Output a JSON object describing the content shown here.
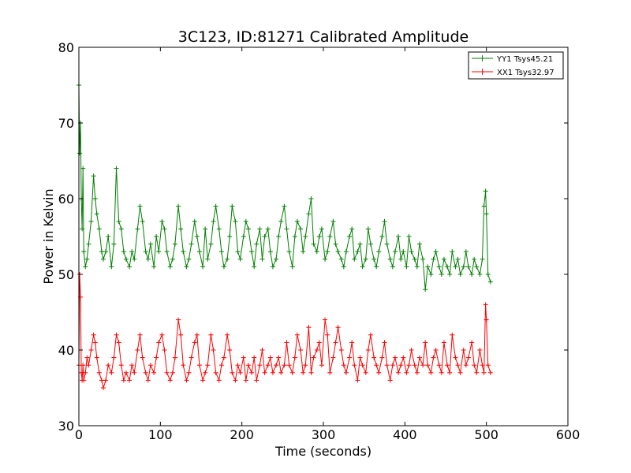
{
  "chart_data": {
    "type": "line",
    "title": "3C123, ID:81271 Calibrated Amplitude",
    "xlabel": "Time (seconds)",
    "ylabel": "Power in Kelvin",
    "xlim": [
      0,
      600
    ],
    "ylim": [
      30,
      80
    ],
    "x_ticks": [
      "0",
      "100",
      "200",
      "300",
      "400",
      "500",
      "600"
    ],
    "y_ticks": [
      "30",
      "40",
      "50",
      "60",
      "70",
      "80"
    ],
    "grid": false,
    "legend_position": "top-right",
    "marker": "+",
    "series": [
      {
        "name": "YY1 Tsys45.21",
        "color": "#007f00",
        "x": [
          0,
          1,
          2,
          3,
          4,
          5,
          6,
          8,
          10,
          12,
          15,
          18,
          20,
          22,
          25,
          28,
          30,
          33,
          36,
          40,
          43,
          46,
          49,
          52,
          55,
          58,
          62,
          65,
          68,
          72,
          75,
          78,
          82,
          85,
          88,
          92,
          95,
          98,
          102,
          105,
          108,
          112,
          115,
          118,
          122,
          125,
          128,
          132,
          135,
          138,
          142,
          145,
          148,
          152,
          155,
          158,
          162,
          165,
          168,
          172,
          175,
          178,
          182,
          185,
          188,
          192,
          195,
          198,
          202,
          205,
          208,
          212,
          215,
          218,
          222,
          225,
          228,
          232,
          235,
          238,
          242,
          245,
          248,
          252,
          255,
          258,
          262,
          265,
          268,
          272,
          275,
          278,
          282,
          285,
          288,
          292,
          295,
          298,
          302,
          305,
          308,
          312,
          315,
          318,
          322,
          325,
          328,
          332,
          335,
          338,
          342,
          345,
          348,
          352,
          355,
          358,
          362,
          365,
          368,
          372,
          375,
          378,
          382,
          385,
          388,
          392,
          395,
          398,
          402,
          405,
          408,
          412,
          415,
          418,
          422,
          425,
          428,
          432,
          435,
          438,
          442,
          445,
          448,
          452,
          455,
          458,
          462,
          465,
          468,
          472,
          475,
          478,
          482,
          485,
          488,
          492,
          495,
          497,
          499,
          500,
          502,
          505
        ],
        "values": [
          75,
          66,
          70,
          60,
          56,
          64,
          53,
          51,
          52,
          54,
          57,
          63,
          60,
          58,
          56,
          53,
          52,
          53,
          55,
          51,
          54,
          64,
          57,
          56,
          53,
          52,
          51,
          53,
          52,
          56,
          59,
          57,
          53,
          52,
          54,
          51,
          55,
          53,
          57,
          56,
          53,
          51,
          52,
          54,
          59,
          56,
          53,
          51,
          52,
          54,
          57,
          55,
          53,
          51,
          56,
          52,
          54,
          57,
          59,
          56,
          53,
          51,
          52,
          55,
          59,
          57,
          53,
          52,
          55,
          57,
          56,
          53,
          51,
          54,
          56,
          52,
          55,
          56,
          53,
          51,
          52,
          55,
          57,
          59,
          56,
          53,
          51,
          55,
          57,
          56,
          53,
          55,
          58,
          60,
          54,
          53,
          55,
          56,
          52,
          53,
          55,
          57,
          54,
          53,
          52,
          51,
          53,
          55,
          56,
          52,
          53,
          54,
          51,
          52,
          56,
          54,
          52,
          51,
          53,
          55,
          57,
          54,
          52,
          51,
          53,
          55,
          52,
          53,
          51,
          55,
          53,
          52,
          51,
          54,
          52,
          48,
          51,
          50,
          52,
          53,
          51,
          50,
          52,
          51,
          50,
          53,
          51,
          52,
          50,
          51,
          53,
          51,
          50,
          52,
          51,
          50,
          52,
          59,
          61,
          58,
          50,
          49
        ]
      },
      {
        "name": "XX1 Tsys32.97",
        "color": "#ff0000",
        "x": [
          0,
          1,
          2,
          3,
          4,
          5,
          6,
          8,
          10,
          12,
          15,
          18,
          20,
          22,
          25,
          28,
          30,
          33,
          36,
          40,
          43,
          46,
          49,
          52,
          55,
          58,
          62,
          65,
          68,
          72,
          75,
          78,
          82,
          85,
          88,
          92,
          95,
          98,
          102,
          105,
          108,
          112,
          115,
          118,
          122,
          125,
          128,
          132,
          135,
          138,
          142,
          145,
          148,
          152,
          155,
          158,
          162,
          165,
          168,
          172,
          175,
          178,
          182,
          185,
          188,
          192,
          195,
          198,
          202,
          205,
          208,
          212,
          215,
          218,
          222,
          225,
          228,
          232,
          235,
          238,
          242,
          245,
          248,
          252,
          255,
          258,
          262,
          265,
          268,
          272,
          275,
          278,
          282,
          285,
          288,
          292,
          295,
          298,
          302,
          305,
          308,
          312,
          315,
          318,
          322,
          325,
          328,
          332,
          335,
          338,
          342,
          345,
          348,
          352,
          355,
          358,
          362,
          365,
          368,
          372,
          375,
          378,
          382,
          385,
          388,
          392,
          395,
          398,
          402,
          405,
          408,
          412,
          415,
          418,
          422,
          425,
          428,
          432,
          435,
          438,
          442,
          445,
          448,
          452,
          455,
          458,
          462,
          465,
          468,
          472,
          475,
          478,
          482,
          485,
          488,
          492,
          495,
          497,
          499,
          500,
          502,
          505
        ],
        "values": [
          38,
          50,
          47,
          37,
          36,
          38,
          36,
          37,
          39,
          38,
          40,
          42,
          41,
          39,
          37,
          36,
          35,
          36,
          38,
          37,
          39,
          42,
          41,
          38,
          36,
          37,
          36,
          38,
          37,
          40,
          42,
          39,
          37,
          36,
          38,
          37,
          39,
          41,
          42,
          40,
          37,
          36,
          37,
          39,
          44,
          42,
          38,
          36,
          37,
          39,
          41,
          42,
          38,
          36,
          37,
          38,
          42,
          40,
          37,
          36,
          38,
          39,
          42,
          40,
          37,
          36,
          38,
          37,
          39,
          36,
          38,
          37,
          39,
          36,
          38,
          40,
          37,
          38,
          39,
          37,
          38,
          39,
          37,
          38,
          41,
          38,
          37,
          39,
          42,
          40,
          37,
          38,
          43,
          37,
          39,
          40,
          41,
          38,
          44,
          42,
          37,
          39,
          41,
          43,
          40,
          38,
          37,
          39,
          41,
          38,
          36,
          39,
          38,
          37,
          40,
          42,
          39,
          38,
          37,
          39,
          41,
          38,
          36,
          38,
          39,
          37,
          38,
          39,
          37,
          38,
          40,
          38,
          37,
          39,
          38,
          41,
          38,
          37,
          39,
          40,
          38,
          37,
          41,
          38,
          37,
          42,
          39,
          38,
          37,
          40,
          38,
          39,
          41,
          38,
          37,
          40,
          38,
          37,
          46,
          44,
          38,
          37
        ]
      }
    ]
  }
}
